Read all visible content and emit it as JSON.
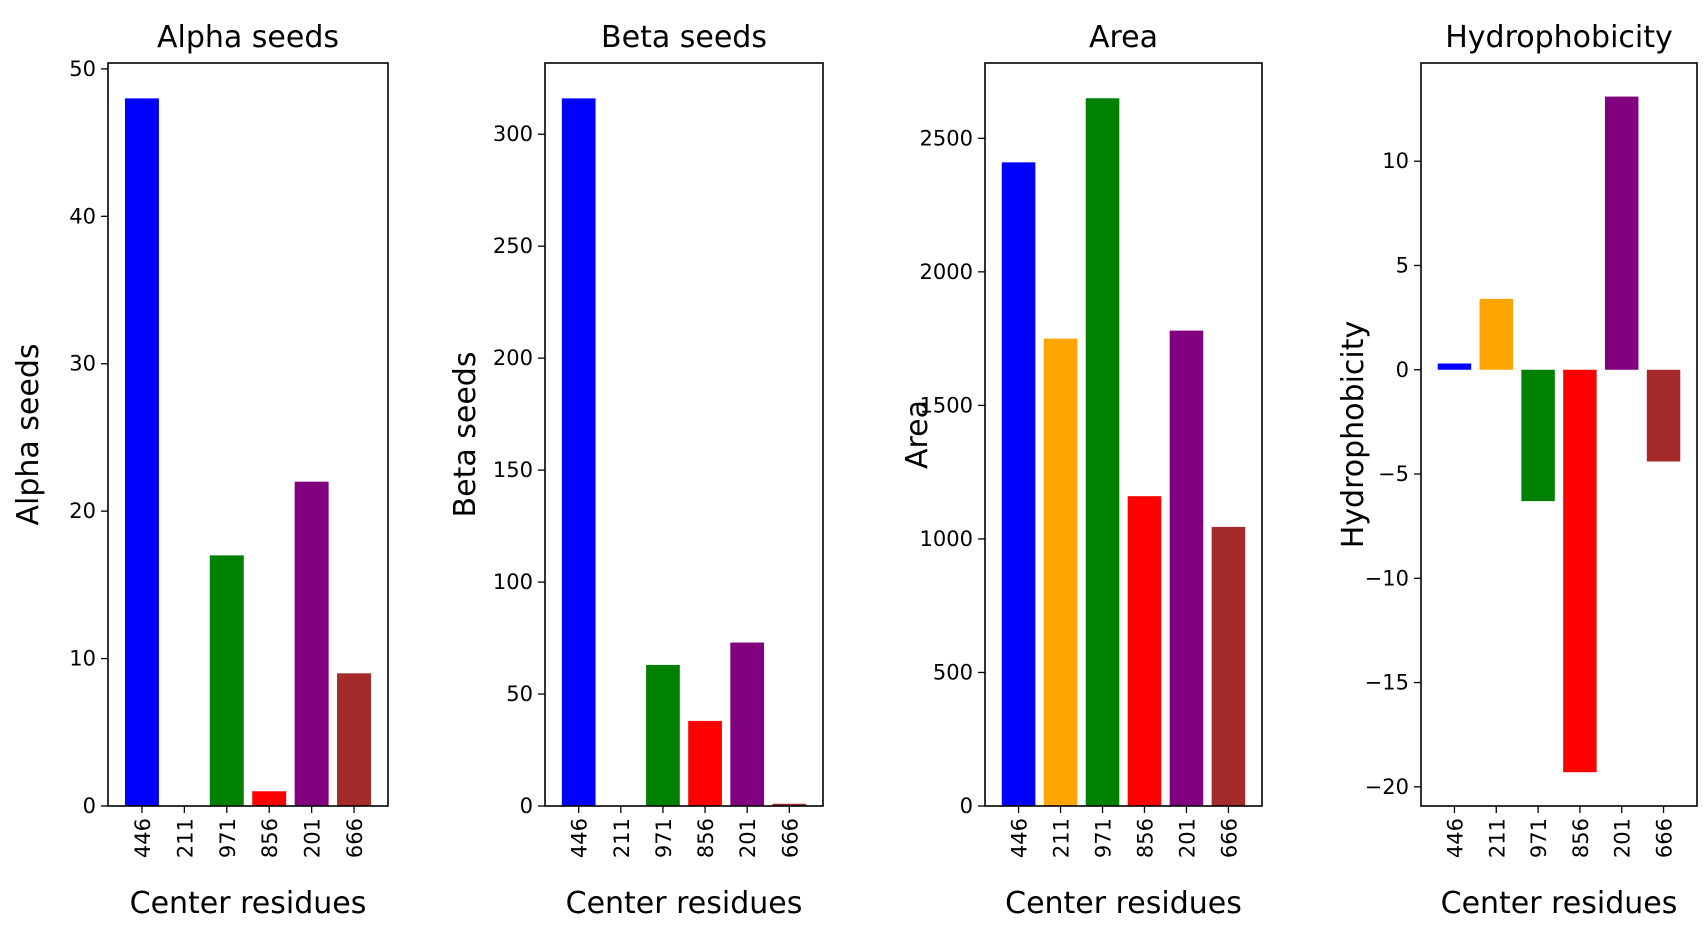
{
  "chart_data": [
    {
      "type": "bar",
      "title": "Alpha seeds",
      "xlabel": "Center residues",
      "ylabel": "Alpha seeds",
      "categories": [
        "446",
        "211",
        "971",
        "856",
        "201",
        "666"
      ],
      "values": [
        48,
        0,
        17,
        1,
        22,
        9
      ],
      "colors": [
        "#0000ff",
        "#ffa500",
        "#008000",
        "#ff0000",
        "#800080",
        "#a52a2a"
      ],
      "ylim": [
        0,
        50.4
      ],
      "yticks": [
        0,
        10,
        20,
        30,
        40,
        50
      ],
      "ytick_labels": [
        "0",
        "10",
        "20",
        "30",
        "40",
        "50"
      ]
    },
    {
      "type": "bar",
      "title": "Beta seeds",
      "xlabel": "Center residues",
      "ylabel": "Beta seeds",
      "categories": [
        "446",
        "211",
        "971",
        "856",
        "201",
        "666"
      ],
      "values": [
        316,
        0,
        63,
        38,
        73,
        1
      ],
      "colors": [
        "#0000ff",
        "#ffa500",
        "#008000",
        "#ff0000",
        "#800080",
        "#a52a2a"
      ],
      "ylim": [
        0,
        331.8
      ],
      "yticks": [
        0,
        50,
        100,
        150,
        200,
        250,
        300
      ],
      "ytick_labels": [
        "0",
        "50",
        "100",
        "150",
        "200",
        "250",
        "300"
      ]
    },
    {
      "type": "bar",
      "title": "Area",
      "xlabel": "Center residues",
      "ylabel": "Area",
      "categories": [
        "446",
        "211",
        "971",
        "856",
        "201",
        "666"
      ],
      "values": [
        2410,
        1750,
        2650,
        1160,
        1780,
        1045
      ],
      "colors": [
        "#0000ff",
        "#ffa500",
        "#008000",
        "#ff0000",
        "#800080",
        "#a52a2a"
      ],
      "ylim": [
        0,
        2782
      ],
      "yticks": [
        0,
        500,
        1000,
        1500,
        2000,
        2500
      ],
      "ytick_labels": [
        "0",
        "500",
        "1000",
        "1500",
        "2000",
        "2500"
      ]
    },
    {
      "type": "bar",
      "title": "Hydrophobicity",
      "xlabel": "Center residues",
      "ylabel": "Hydrophobicity",
      "categories": [
        "446",
        "211",
        "971",
        "856",
        "201",
        "666"
      ],
      "values": [
        0.3,
        3.4,
        -6.3,
        -19.3,
        13.1,
        -4.4
      ],
      "colors": [
        "#0000ff",
        "#ffa500",
        "#008000",
        "#ff0000",
        "#800080",
        "#a52a2a"
      ],
      "ylim": [
        -20.92,
        14.71
      ],
      "yticks": [
        -20,
        -15,
        -10,
        -5,
        0,
        5,
        10
      ],
      "ytick_labels": [
        "−20",
        "−15",
        "−10",
        "−5",
        "0",
        "5",
        "10"
      ]
    }
  ]
}
